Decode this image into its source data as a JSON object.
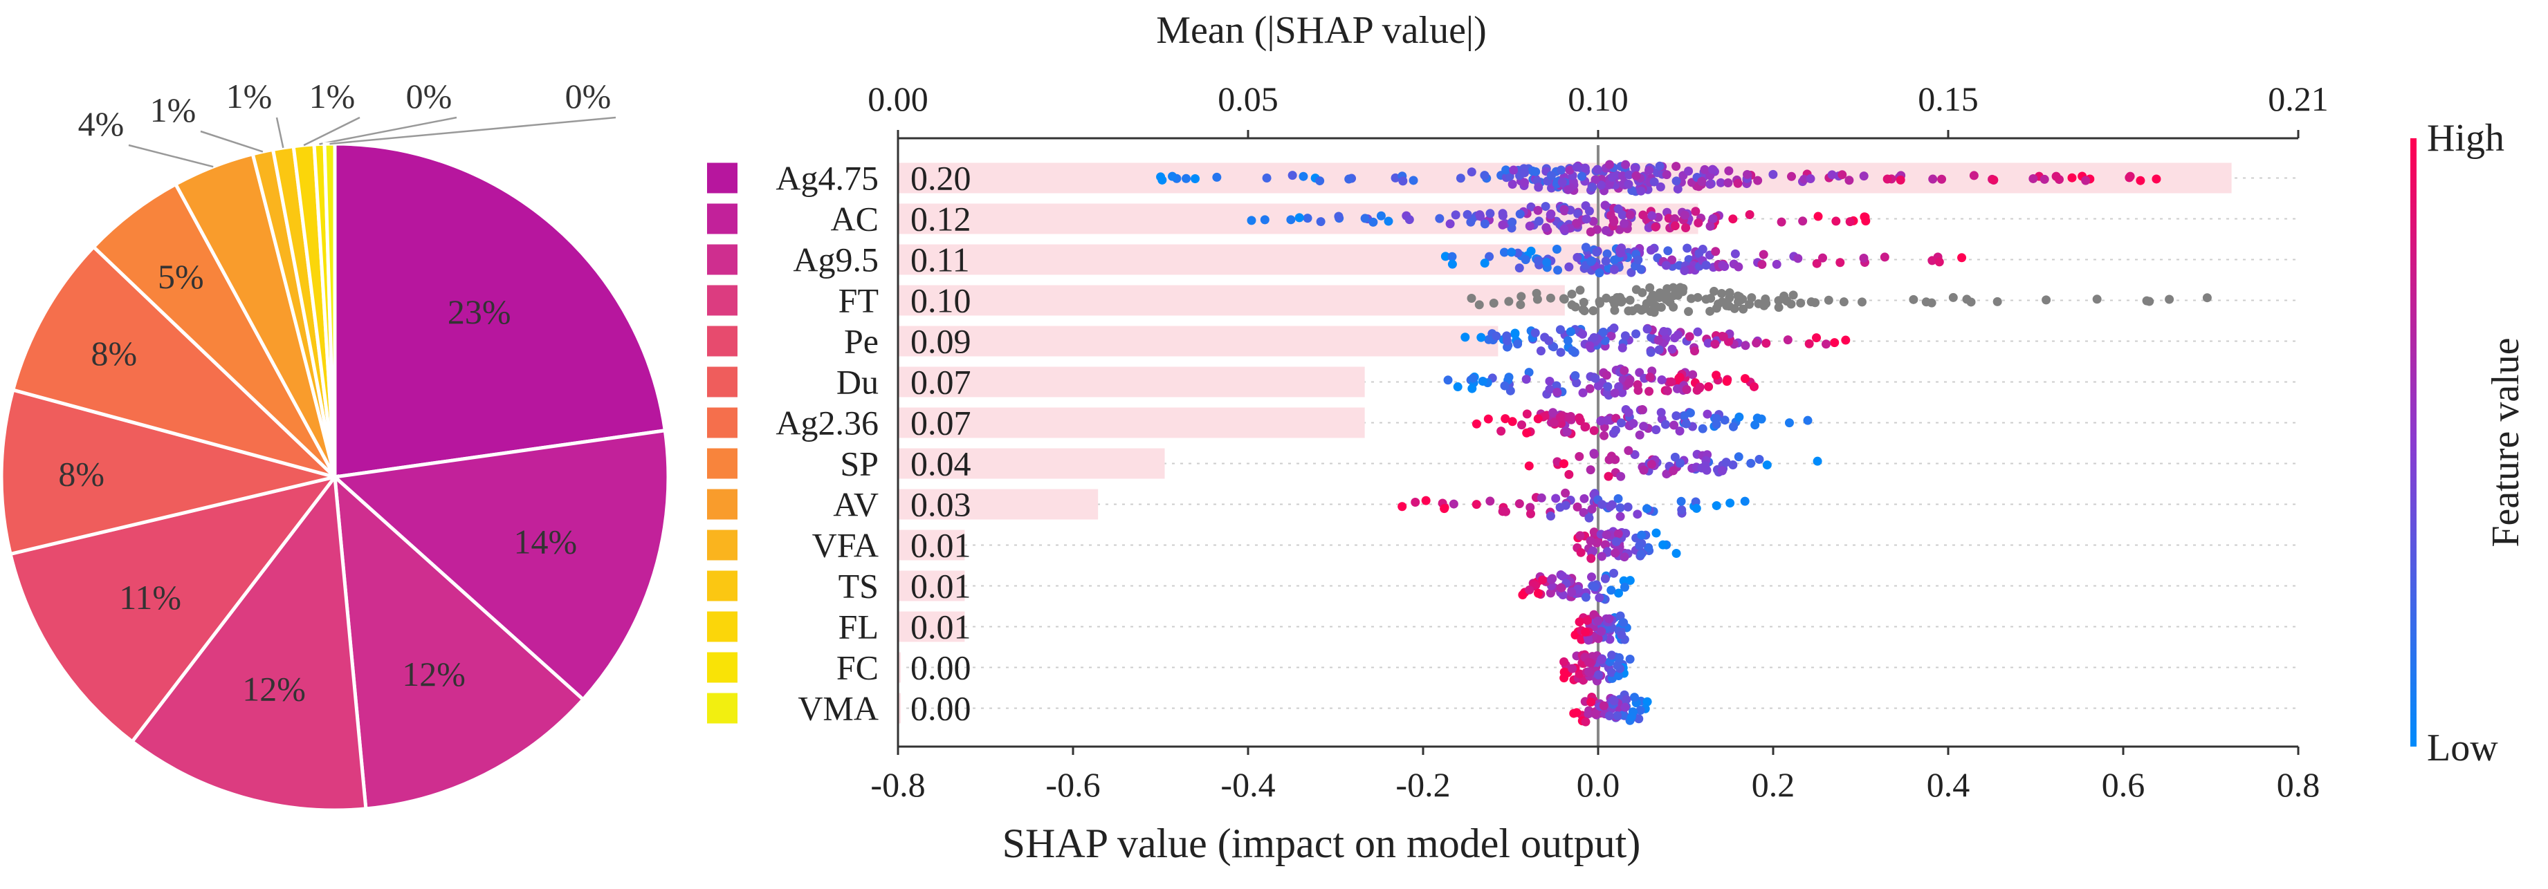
{
  "chart_data": [
    {
      "type": "pie",
      "slices": [
        {
          "label": "Ag4.75",
          "value": 23,
          "text": "23%",
          "color": "#b7169e"
        },
        {
          "label": "AC",
          "value": 14,
          "text": "14%",
          "color": "#c2219a"
        },
        {
          "label": "Ag9.5",
          "value": 12,
          "text": "12%",
          "color": "#cf2e8f"
        },
        {
          "label": "FT",
          "value": 12,
          "text": "12%",
          "color": "#dc3c80"
        },
        {
          "label": "Pe",
          "value": 11,
          "text": "11%",
          "color": "#e74b6e"
        },
        {
          "label": "Du",
          "value": 8,
          "text": "8%",
          "color": "#ef5d5c"
        },
        {
          "label": "Ag2.36",
          "value": 8,
          "text": "8%",
          "color": "#f56f4c"
        },
        {
          "label": "SP",
          "value": 5,
          "text": "5%",
          "color": "#f8843c"
        },
        {
          "label": "AV",
          "value": 4,
          "text": "4%",
          "color": "#f99c2c"
        },
        {
          "label": "VFA",
          "value": 1,
          "text": "1%",
          "color": "#fab41e"
        },
        {
          "label": "TS",
          "value": 1,
          "text": "1%",
          "color": "#fbc712"
        },
        {
          "label": "FL",
          "value": 1,
          "text": "1%",
          "color": "#fbd60a"
        },
        {
          "label": "FC",
          "value": 0.5,
          "text": "0%",
          "color": "#f9e306"
        },
        {
          "label": "VMA",
          "value": 0.5,
          "text": "0%",
          "color": "#f2ef10"
        }
      ]
    },
    {
      "type": "bar+scatter",
      "top_axis_title": "Mean (|SHAP value|)",
      "top_ticks": [
        "0.00",
        "0.05",
        "0.10",
        "0.15",
        "0.21"
      ],
      "top_range": [
        0,
        0.21
      ],
      "xlabel": "SHAP value (impact on model output)",
      "xlim": [
        -0.8,
        0.8
      ],
      "x_ticks": [
        "-0.8",
        "-0.6",
        "-0.4",
        "-0.2",
        "0.0",
        "0.2",
        "0.4",
        "0.6",
        "0.8"
      ],
      "features": [
        {
          "name": "Ag4.75",
          "mean": 0.2,
          "label": "0.20",
          "color": "#b7169e",
          "min": -0.5,
          "max": 0.66
        },
        {
          "name": "AC",
          "mean": 0.12,
          "label": "0.12",
          "color": "#c2219a",
          "min": -0.4,
          "max": 0.32
        },
        {
          "name": "Ag9.5",
          "mean": 0.11,
          "label": "0.11",
          "color": "#cf2e8f",
          "min": -0.18,
          "max": 0.42
        },
        {
          "name": "FT",
          "mean": 0.1,
          "label": "0.10",
          "color": "#dc3c80",
          "min": -0.15,
          "max": 0.72
        },
        {
          "name": "Pe",
          "mean": 0.09,
          "label": "0.09",
          "color": "#e74b6e",
          "min": -0.17,
          "max": 0.3
        },
        {
          "name": "Du",
          "mean": 0.07,
          "label": "0.07",
          "color": "#ef5d5c",
          "min": -0.18,
          "max": 0.18
        },
        {
          "name": "Ag2.36",
          "mean": 0.07,
          "label": "0.07",
          "color": "#f56f4c",
          "min": -0.14,
          "max": 0.24
        },
        {
          "name": "SP",
          "mean": 0.04,
          "label": "0.04",
          "color": "#f8843c",
          "min": -0.09,
          "max": 0.26
        },
        {
          "name": "AV",
          "mean": 0.03,
          "label": "0.03",
          "color": "#f99c2c",
          "min": -0.23,
          "max": 0.18
        },
        {
          "name": "VFA",
          "mean": 0.01,
          "label": "0.01",
          "color": "#fab41e",
          "min": -0.05,
          "max": 0.09
        },
        {
          "name": "TS",
          "mean": 0.01,
          "label": "0.01",
          "color": "#fbc712",
          "min": -0.09,
          "max": 0.04
        },
        {
          "name": "FL",
          "mean": 0.01,
          "label": "0.01",
          "color": "#fbd60a",
          "min": -0.03,
          "max": 0.04
        },
        {
          "name": "FC",
          "mean": 0.0,
          "label": "0.00",
          "color": "#f9e306",
          "min": -0.04,
          "max": 0.04
        },
        {
          "name": "VMA",
          "mean": 0.0,
          "label": "0.00",
          "color": "#f2ef10",
          "min": -0.03,
          "max": 0.06
        }
      ],
      "colorbar": {
        "high_label": "High",
        "low_label": "Low",
        "title": "Feature value",
        "high_color": "#ff0052",
        "mid_color": "#8a3bd0",
        "low_color": "#008bfb"
      }
    }
  ]
}
